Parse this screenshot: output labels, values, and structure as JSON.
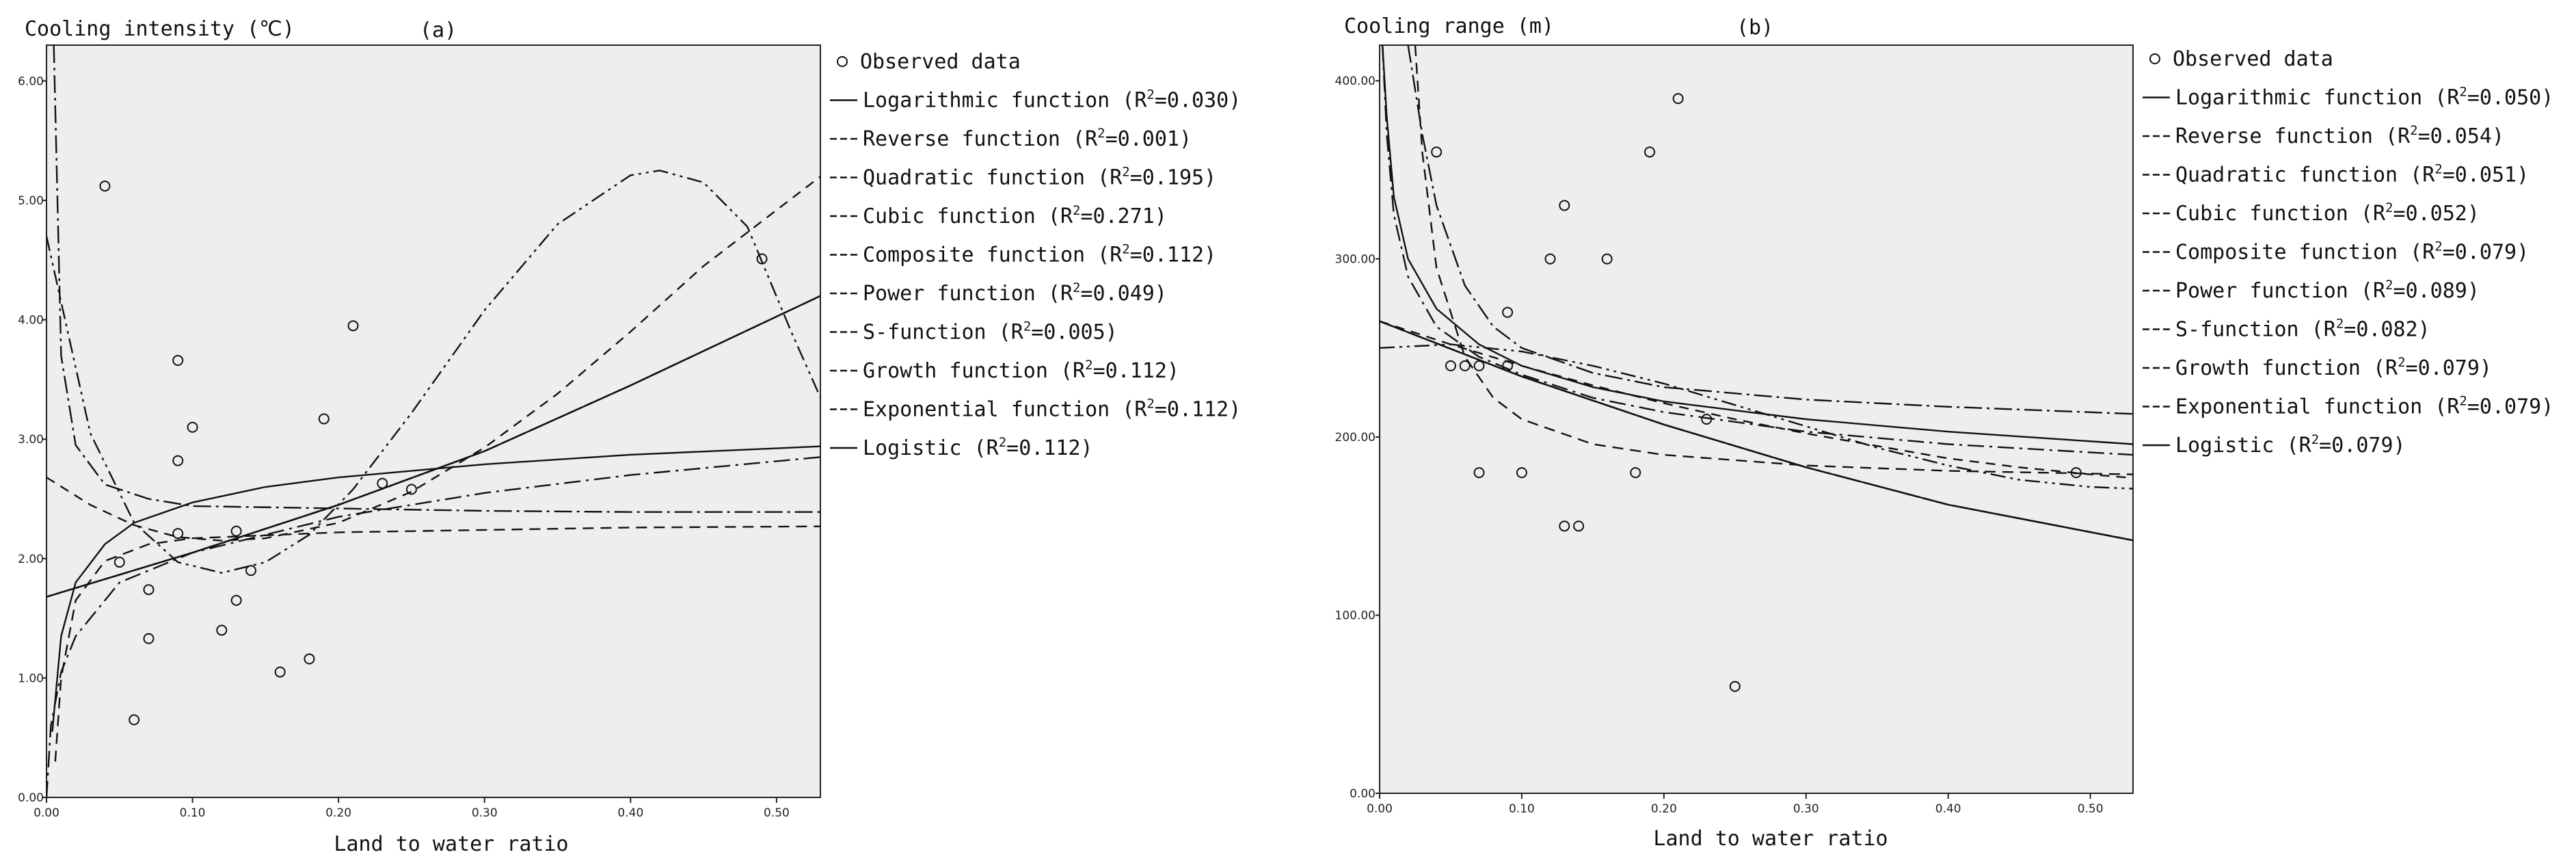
{
  "chart_data": [
    {
      "id": "panel-a",
      "type": "scatter",
      "panel_label": "(a)",
      "ylabel": "Cooling intensity (℃)",
      "xlabel": "Land to water ratio",
      "xlim": [
        0,
        0.53
      ],
      "ylim": [
        0,
        6.3
      ],
      "xticks": [
        0,
        0.1,
        0.2,
        0.3,
        0.4,
        0.5
      ],
      "xtick_labels": [
        "0.00",
        "0.10",
        "0.20",
        "0.30",
        "0.40",
        "0.50"
      ],
      "yticks": [
        0,
        1,
        2,
        3,
        4,
        5,
        6
      ],
      "ytick_labels": [
        "0.00",
        "1.00",
        "2.00",
        "3.00",
        "4.00",
        "5.00",
        "6.00"
      ],
      "grid": false,
      "legend_position": "right",
      "legend_marker_text": "Observed data",
      "observed": {
        "name": "Observed data",
        "x": [
          0.04,
          0.05,
          0.06,
          0.07,
          0.07,
          0.09,
          0.09,
          0.09,
          0.1,
          0.12,
          0.13,
          0.13,
          0.14,
          0.16,
          0.18,
          0.19,
          0.21,
          0.23,
          0.25,
          0.49
        ],
        "y": [
          5.12,
          1.97,
          0.65,
          1.74,
          1.33,
          3.66,
          2.82,
          2.21,
          3.1,
          1.4,
          2.23,
          1.65,
          1.9,
          1.05,
          1.16,
          3.17,
          3.95,
          2.63,
          2.58,
          4.51
        ]
      },
      "series": [
        {
          "name": "Logarithmic function",
          "r2": "0.030",
          "dash": "",
          "width": 2.4,
          "x": [
            0.004,
            0.01,
            0.02,
            0.04,
            0.06,
            0.1,
            0.15,
            0.2,
            0.3,
            0.4,
            0.53
          ],
          "y": [
            0.55,
            1.35,
            1.8,
            2.12,
            2.3,
            2.47,
            2.6,
            2.68,
            2.79,
            2.87,
            2.94
          ]
        },
        {
          "name": "Reverse function",
          "r2": "0.001",
          "dash": "26 7 4 7",
          "width": 2.4,
          "x": [
            0.005,
            0.01,
            0.02,
            0.04,
            0.07,
            0.1,
            0.2,
            0.3,
            0.4,
            0.53
          ],
          "y": [
            6.3,
            3.7,
            2.95,
            2.62,
            2.5,
            2.44,
            2.42,
            2.4,
            2.39,
            2.39
          ]
        },
        {
          "name": "Quadratic function",
          "r2": "0.195",
          "dash": "14 10",
          "width": 2.4,
          "x": [
            0.0,
            0.03,
            0.06,
            0.09,
            0.12,
            0.15,
            0.2,
            0.25,
            0.3,
            0.35,
            0.4,
            0.45,
            0.53
          ],
          "y": [
            2.68,
            2.45,
            2.28,
            2.18,
            2.15,
            2.17,
            2.3,
            2.56,
            2.93,
            3.38,
            3.9,
            4.45,
            5.2
          ]
        },
        {
          "name": "Cubic function",
          "r2": "0.271",
          "dash": "22 7 4 7 4 7",
          "width": 2.4,
          "x": [
            0.0,
            0.03,
            0.06,
            0.09,
            0.12,
            0.15,
            0.18,
            0.21,
            0.25,
            0.3,
            0.35,
            0.4,
            0.42,
            0.45,
            0.48,
            0.51,
            0.53
          ],
          "y": [
            4.7,
            3.05,
            2.3,
            1.97,
            1.88,
            1.97,
            2.2,
            2.58,
            3.22,
            4.08,
            4.8,
            5.21,
            5.25,
            5.15,
            4.78,
            3.9,
            3.35
          ]
        },
        {
          "name": "Composite function",
          "r2": "0.112",
          "dash": "7 8",
          "width": 2.4,
          "x": [
            0.0,
            0.1,
            0.2,
            0.3,
            0.4,
            0.53
          ],
          "y": [
            1.68,
            2.05,
            2.45,
            2.9,
            3.45,
            4.2
          ]
        },
        {
          "name": "Power function",
          "r2": "0.049",
          "dash": "24 8 4 8",
          "width": 2.4,
          "x": [
            0.0,
            0.003,
            0.01,
            0.02,
            0.05,
            0.1,
            0.2,
            0.3,
            0.4,
            0.53
          ],
          "y": [
            0.0,
            0.6,
            1.05,
            1.35,
            1.8,
            2.05,
            2.35,
            2.55,
            2.7,
            2.85
          ]
        },
        {
          "name": "S-function",
          "r2": "0.005",
          "dash": "16 10",
          "width": 2.4,
          "x": [
            0.006,
            0.01,
            0.02,
            0.04,
            0.07,
            0.1,
            0.2,
            0.3,
            0.4,
            0.53
          ],
          "y": [
            0.3,
            1.0,
            1.65,
            1.98,
            2.12,
            2.17,
            2.22,
            2.24,
            2.26,
            2.27
          ]
        },
        {
          "name": "Growth function",
          "r2": "0.112",
          "dash": "36 8",
          "width": 2.4,
          "x": [
            0.0,
            0.1,
            0.2,
            0.3,
            0.4,
            0.53
          ],
          "y": [
            1.68,
            2.05,
            2.45,
            2.9,
            3.45,
            4.2
          ]
        },
        {
          "name": "Exponential function",
          "r2": "0.112",
          "dash": "12 6 3 6",
          "width": 2.4,
          "x": [
            0.0,
            0.1,
            0.2,
            0.3,
            0.4,
            0.53
          ],
          "y": [
            1.68,
            2.05,
            2.45,
            2.9,
            3.45,
            4.2
          ]
        },
        {
          "name": "Logistic",
          "r2": "0.112",
          "dash": "",
          "width": 3.2,
          "x": [
            0.0,
            0.1,
            0.2,
            0.3,
            0.4,
            0.53
          ],
          "y": [
            1.68,
            2.05,
            2.45,
            2.9,
            3.45,
            4.2
          ]
        }
      ]
    },
    {
      "id": "panel-b",
      "type": "scatter",
      "panel_label": "(b)",
      "ylabel": "Cooling range (m)",
      "xlabel": "Land to water ratio",
      "xlim": [
        0,
        0.53
      ],
      "ylim": [
        0,
        420
      ],
      "xticks": [
        0,
        0.1,
        0.2,
        0.3,
        0.4,
        0.5
      ],
      "xtick_labels": [
        "0.00",
        "0.10",
        "0.20",
        "0.30",
        "0.40",
        "0.50"
      ],
      "yticks": [
        0,
        100,
        200,
        300,
        400
      ],
      "ytick_labels": [
        "0.00",
        "100.00",
        "200.00",
        "300.00",
        "400.00"
      ],
      "grid": false,
      "legend_position": "right",
      "legend_marker_text": "Observed data",
      "observed": {
        "name": "Observed data",
        "x": [
          0.04,
          0.05,
          0.06,
          0.07,
          0.07,
          0.09,
          0.09,
          0.1,
          0.12,
          0.13,
          0.13,
          0.14,
          0.16,
          0.18,
          0.19,
          0.21,
          0.23,
          0.25,
          0.49
        ],
        "y": [
          360,
          240,
          240,
          240,
          180,
          270,
          240,
          180,
          300,
          330,
          150,
          150,
          300,
          180,
          360,
          390,
          210,
          60,
          180
        ]
      },
      "series": [
        {
          "name": "Logarithmic function",
          "r2": "0.050",
          "dash": "",
          "width": 2.4,
          "x": [
            0.002,
            0.005,
            0.01,
            0.02,
            0.04,
            0.07,
            0.1,
            0.15,
            0.2,
            0.3,
            0.4,
            0.53
          ],
          "y": [
            420,
            380,
            335,
            300,
            272,
            252,
            240,
            228,
            220,
            210,
            203,
            196
          ]
        },
        {
          "name": "Reverse function",
          "r2": "0.054",
          "dash": "26 7 4 7",
          "width": 2.4,
          "x": [
            0.02,
            0.03,
            0.04,
            0.06,
            0.08,
            0.1,
            0.15,
            0.2,
            0.3,
            0.4,
            0.53
          ],
          "y": [
            420,
            370,
            330,
            285,
            262,
            250,
            236,
            228,
            221,
            217,
            213
          ]
        },
        {
          "name": "Quadratic function",
          "r2": "0.051",
          "dash": "14 10",
          "width": 2.4,
          "x": [
            0.0,
            0.05,
            0.1,
            0.15,
            0.2,
            0.25,
            0.3,
            0.35,
            0.4,
            0.45,
            0.5,
            0.53
          ],
          "y": [
            265,
            252,
            240,
            229,
            219,
            210,
            202,
            195,
            188,
            183,
            179,
            177
          ]
        },
        {
          "name": "Cubic function",
          "r2": "0.052",
          "dash": "22 7 4 7 4 7",
          "width": 2.4,
          "x": [
            0.0,
            0.05,
            0.1,
            0.15,
            0.2,
            0.25,
            0.3,
            0.35,
            0.4,
            0.45,
            0.5,
            0.53
          ],
          "y": [
            250,
            252,
            248,
            240,
            230,
            218,
            206,
            194,
            184,
            176,
            172,
            171
          ]
        },
        {
          "name": "Composite function",
          "r2": "0.079",
          "dash": "7 8",
          "width": 2.4,
          "x": [
            0.0,
            0.1,
            0.2,
            0.3,
            0.4,
            0.53
          ],
          "y": [
            265,
            234,
            207,
            183,
            162,
            142
          ]
        },
        {
          "name": "Power function",
          "r2": "0.089",
          "dash": "24 8 4 8",
          "width": 2.4,
          "x": [
            0.002,
            0.005,
            0.01,
            0.02,
            0.04,
            0.07,
            0.1,
            0.15,
            0.2,
            0.3,
            0.4,
            0.53
          ],
          "y": [
            420,
            370,
            325,
            290,
            262,
            245,
            235,
            222,
            214,
            203,
            196,
            190
          ]
        },
        {
          "name": "S-function",
          "r2": "0.082",
          "dash": "16 10",
          "width": 2.4,
          "x": [
            0.025,
            0.03,
            0.04,
            0.06,
            0.08,
            0.1,
            0.15,
            0.2,
            0.3,
            0.4,
            0.53
          ],
          "y": [
            420,
            360,
            295,
            245,
            222,
            210,
            196,
            190,
            184,
            181,
            179
          ]
        },
        {
          "name": "Growth function",
          "r2": "0.079",
          "dash": "36 8",
          "width": 2.4,
          "x": [
            0.0,
            0.1,
            0.2,
            0.3,
            0.4,
            0.53
          ],
          "y": [
            265,
            234,
            207,
            183,
            162,
            142
          ]
        },
        {
          "name": "Exponential function",
          "r2": "0.079",
          "dash": "12 6 3 6",
          "width": 2.4,
          "x": [
            0.0,
            0.1,
            0.2,
            0.3,
            0.4,
            0.53
          ],
          "y": [
            265,
            234,
            207,
            183,
            162,
            142
          ]
        },
        {
          "name": "Logistic",
          "r2": "0.079",
          "dash": "",
          "width": 3.2,
          "x": [
            0.0,
            0.1,
            0.2,
            0.3,
            0.4,
            0.53
          ],
          "y": [
            265,
            234,
            207,
            183,
            162,
            142
          ]
        }
      ]
    }
  ]
}
